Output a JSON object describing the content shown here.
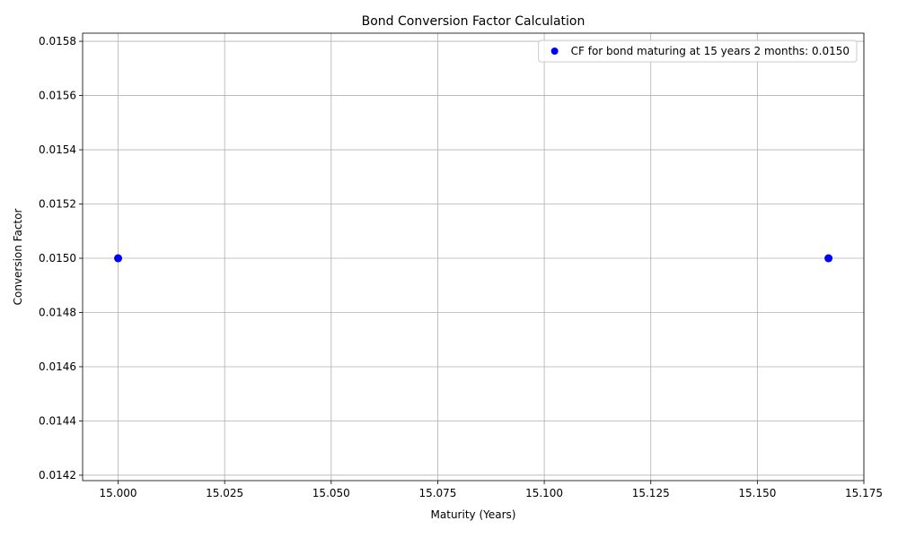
{
  "chart_data": {
    "type": "scatter",
    "title": "Bond Conversion Factor Calculation",
    "xlabel": "Maturity (Years)",
    "ylabel": "Conversion Factor",
    "xlim": [
      14.99167,
      15.175
    ],
    "ylim": [
      0.01418,
      0.01583
    ],
    "xticks": [
      15.0,
      15.025,
      15.05,
      15.075,
      15.1,
      15.125,
      15.15,
      15.175
    ],
    "xtick_labels": [
      "15.000",
      "15.025",
      "15.050",
      "15.075",
      "15.100",
      "15.125",
      "15.150",
      "15.175"
    ],
    "yticks": [
      0.0142,
      0.0144,
      0.0146,
      0.0148,
      0.015,
      0.0152,
      0.0154,
      0.0156,
      0.0158
    ],
    "ytick_labels": [
      "0.0142",
      "0.0144",
      "0.0146",
      "0.0148",
      "0.0150",
      "0.0152",
      "0.0154",
      "0.0156",
      "0.0158"
    ],
    "grid": true,
    "legend_position": "top-right",
    "series": [
      {
        "name": "CF for bond maturing at 15 years 2 months: 0.0150",
        "color": "#0000ff",
        "points": [
          {
            "x": 15.0,
            "y": 0.015
          },
          {
            "x": 15.1667,
            "y": 0.015
          }
        ]
      }
    ]
  }
}
